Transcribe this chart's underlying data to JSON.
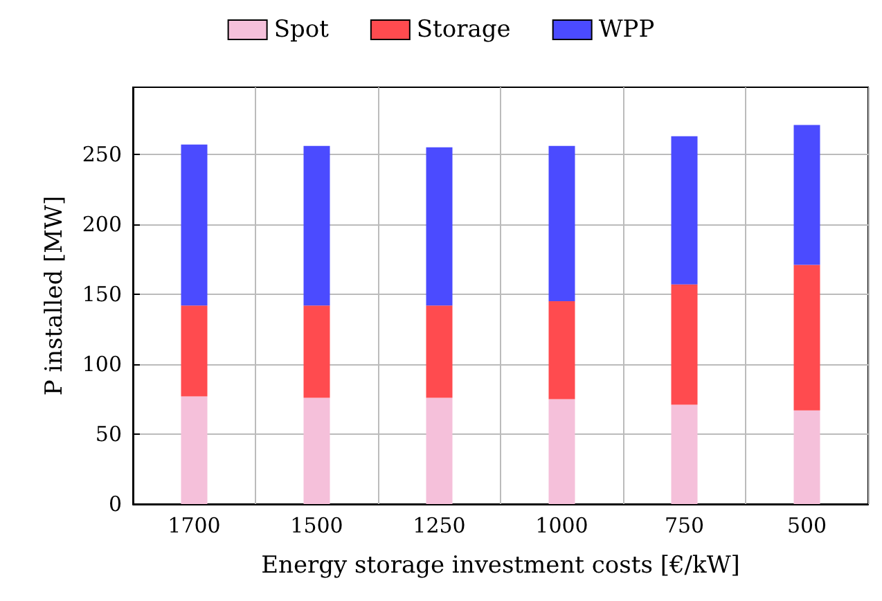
{
  "chart_data": {
    "type": "bar",
    "stacked": true,
    "xlabel": "Energy storage investment costs [€/kW]",
    "ylabel": "P installed [MW]",
    "categories": [
      "1700",
      "1500",
      "1250",
      "1000",
      "750",
      "500"
    ],
    "series": [
      {
        "name": "Spot",
        "color": "#f5c0da",
        "values": [
          77,
          76,
          76,
          75,
          71,
          67
        ]
      },
      {
        "name": "Storage",
        "color": "#ff4b4f",
        "values": [
          65,
          66,
          66,
          70,
          86,
          104
        ]
      },
      {
        "name": "WPP",
        "color": "#4b4bff",
        "values": [
          115,
          114,
          113,
          111,
          106,
          100
        ]
      }
    ],
    "ylim": [
      0,
      298
    ],
    "yticks": [
      0,
      50,
      100,
      150,
      200,
      250
    ],
    "grid": true,
    "legend": "top"
  }
}
